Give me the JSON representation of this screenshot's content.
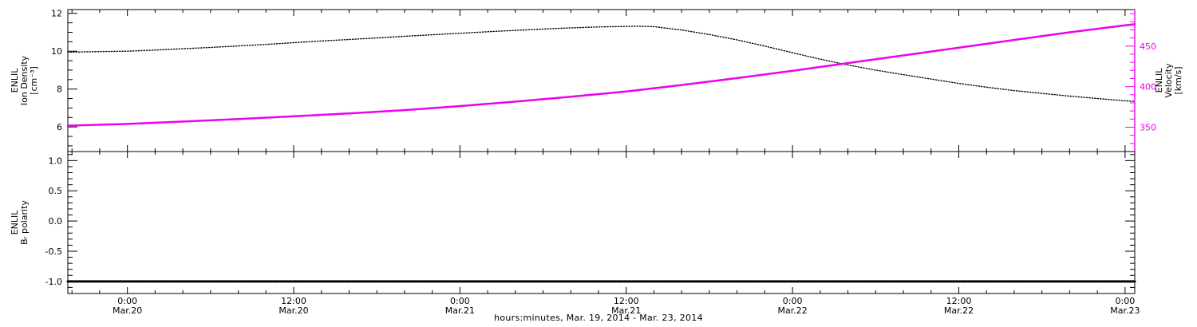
{
  "page": {
    "background": "#ffffff"
  },
  "chart_data": {
    "type": "line",
    "title": "",
    "x_axis": {
      "label": "hours:minutes, Mar. 19, 2014 - Mar. 23, 2014",
      "unit": "hours relative to Mar.20 00:00",
      "lim": [
        -4.3,
        72.7
      ],
      "minor_step": 2,
      "major_ticks": [
        {
          "pos": 0,
          "time": "0:00",
          "date": "Mar.20"
        },
        {
          "pos": 12,
          "time": "12:00",
          "date": "Mar.20"
        },
        {
          "pos": 24,
          "time": "0:00",
          "date": "Mar.21"
        },
        {
          "pos": 36,
          "time": "12:00",
          "date": "Mar.21"
        },
        {
          "pos": 48,
          "time": "0:00",
          "date": "Mar.22"
        },
        {
          "pos": 60,
          "time": "12:00",
          "date": "Mar.22"
        },
        {
          "pos": 72,
          "time": "0:00",
          "date": "Mar.23"
        }
      ]
    },
    "panels": [
      {
        "name": "density-velocity-panel",
        "left_axis": {
          "label_lines": [
            "ENLIL",
            "Ion Density",
            "[cm⁻³]"
          ],
          "lim": [
            4.7,
            12.2
          ],
          "major_ticks": [
            {
              "v": 6,
              "label": "6"
            },
            {
              "v": 8,
              "label": "8"
            },
            {
              "v": 10,
              "label": "10"
            },
            {
              "v": 12,
              "label": "12"
            }
          ],
          "minor_start": 5,
          "minor_step": 0.5,
          "color": "#000000"
        },
        "right_axis": {
          "label_lines": [
            "ENLIL",
            "Velocity",
            "[km/s]"
          ],
          "lim": [
            320,
            495
          ],
          "major_ticks": [
            {
              "v": 350,
              "label": "350"
            },
            {
              "v": 400,
              "label": "400"
            },
            {
              "v": 450,
              "label": "450"
            }
          ],
          "minor_start": 330,
          "minor_step": 10,
          "color": "#ee00ee"
        },
        "series": [
          {
            "name": "ion-density-curve",
            "legend": "ENLIL Ion Density",
            "axis": "left",
            "color": "#000000",
            "width": 1.4,
            "dash": "1.2 2.2",
            "x": [
              -4.3,
              -2,
              0,
              2,
              4,
              6,
              8,
              10,
              12,
              14,
              16,
              18,
              20,
              22,
              24,
              26,
              28,
              30,
              32,
              34,
              36,
              37,
              38,
              40,
              42,
              44,
              46,
              48,
              50,
              52,
              54,
              56,
              58,
              60,
              62,
              64,
              66,
              68,
              70,
              72,
              72.7
            ],
            "y": [
              9.95,
              9.98,
              10.0,
              10.06,
              10.13,
              10.2,
              10.28,
              10.36,
              10.45,
              10.54,
              10.62,
              10.7,
              10.79,
              10.87,
              10.95,
              11.03,
              11.1,
              11.17,
              11.23,
              11.28,
              11.31,
              11.32,
              11.3,
              11.12,
              10.88,
              10.6,
              10.27,
              9.92,
              9.58,
              9.27,
              9.0,
              8.76,
              8.53,
              8.3,
              8.1,
              7.92,
              7.77,
              7.63,
              7.5,
              7.38,
              7.35
            ]
          },
          {
            "name": "velocity-curve",
            "legend": "ENLIL Velocity",
            "axis": "right",
            "color": "#ee00ee",
            "width": 2.6,
            "dash": "1.5 1.5",
            "x": [
              -4.3,
              0,
              4,
              8,
              12,
              16,
              20,
              24,
              28,
              32,
              36,
              40,
              44,
              48,
              52,
              56,
              60,
              64,
              68,
              72,
              72.7
            ],
            "y": [
              352,
              354,
              357,
              360,
              363.5,
              367,
              371,
              376,
              381.5,
              387.5,
              394,
              402,
              410.5,
              419.5,
              429,
              438.5,
              448,
              457.5,
              467,
              475.5,
              477
            ]
          }
        ]
      },
      {
        "name": "polarity-panel",
        "left_axis": {
          "label_lines": [
            "ENLIL",
            "Bᵣ polarity"
          ],
          "lim": [
            -1.2,
            1.15
          ],
          "major_ticks": [
            {
              "v": 1.0,
              "label": "1.0"
            },
            {
              "v": 0.5,
              "label": "0.5"
            },
            {
              "v": 0.0,
              "label": "0.0"
            },
            {
              "v": -0.5,
              "label": "-0.5"
            },
            {
              "v": -1.0,
              "label": "-1.0"
            }
          ],
          "minor_start": -1.1,
          "minor_step": 0.1,
          "color": "#000000"
        },
        "series": [
          {
            "name": "br-polarity-curve",
            "legend": "ENLIL Br polarity",
            "axis": "left",
            "color": "#000000",
            "width": 3,
            "dash": "1.5 1.6",
            "x": [
              -4.3,
              72.7
            ],
            "y": [
              -1,
              -1
            ]
          }
        ]
      }
    ]
  }
}
